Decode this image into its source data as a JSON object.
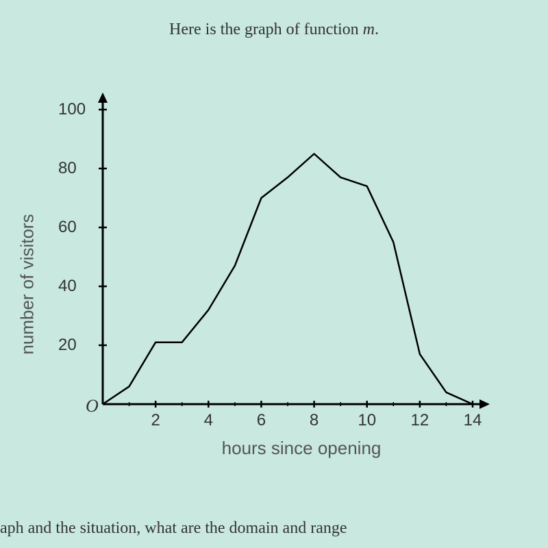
{
  "title_prefix": "Here is the graph of function ",
  "title_var": "m",
  "title_suffix": ".",
  "chart": {
    "type": "line",
    "xlabel": "hours since opening",
    "ylabel": "number of visitors",
    "origin_label": "O",
    "xlim": [
      0,
      14
    ],
    "ylim": [
      0,
      100
    ],
    "x_ticks": [
      2,
      4,
      6,
      8,
      10,
      12,
      14
    ],
    "y_ticks": [
      20,
      40,
      60,
      80,
      100
    ],
    "x_minor_step": 1,
    "y_minor_step": 10,
    "line_color": "#000000",
    "line_width": 2.5,
    "axis_color": "#000000",
    "axis_width": 3,
    "tick_color": "#333333",
    "background_color": "#c8e8e0",
    "label_fontsize": 26,
    "tick_fontsize": 24,
    "data_points": [
      {
        "x": 0,
        "y": 0
      },
      {
        "x": 1,
        "y": 6
      },
      {
        "x": 2,
        "y": 21
      },
      {
        "x": 3,
        "y": 21
      },
      {
        "x": 4,
        "y": 32
      },
      {
        "x": 5,
        "y": 47
      },
      {
        "x": 6,
        "y": 70
      },
      {
        "x": 7,
        "y": 77
      },
      {
        "x": 8,
        "y": 85
      },
      {
        "x": 9,
        "y": 77
      },
      {
        "x": 10,
        "y": 74
      },
      {
        "x": 11,
        "y": 55
      },
      {
        "x": 12,
        "y": 17
      },
      {
        "x": 13,
        "y": 4
      },
      {
        "x": 14,
        "y": 0
      }
    ]
  },
  "bottom_text": "aph and the situation, what are the domain and range"
}
